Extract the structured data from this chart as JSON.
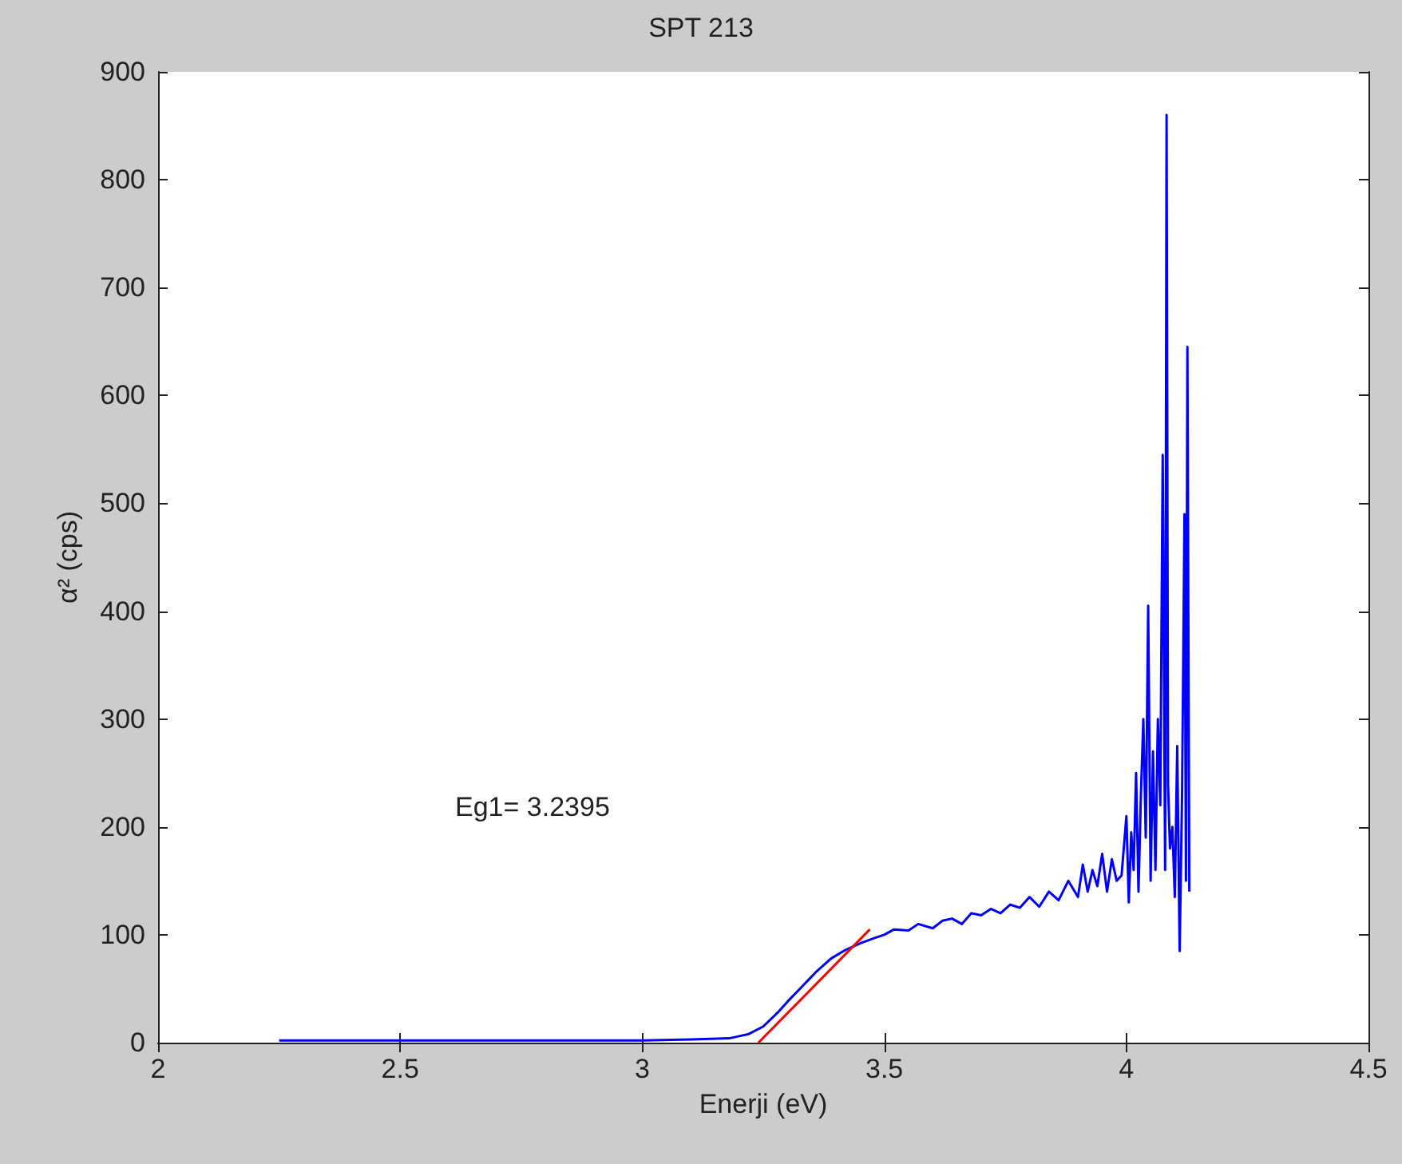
{
  "chart_data": {
    "type": "line",
    "title": "SPT 213",
    "xlabel": "Enerji (eV)",
    "ylabel": "α² (cps)",
    "annotations": [
      "Eg1= 3.2395"
    ],
    "xlim": [
      2,
      4.5
    ],
    "xticks": [
      2,
      2.5,
      3,
      3.5,
      4,
      4.5
    ],
    "ylim": [
      0,
      900
    ],
    "yticks": [
      0,
      100,
      200,
      300,
      400,
      500,
      600,
      700,
      800,
      900
    ],
    "grid": false,
    "marker": "none",
    "line_style": "solid",
    "series": [
      {
        "color": "#0000ff",
        "x": [
          2.25,
          2.5,
          2.75,
          3.0,
          3.1,
          3.18,
          3.2,
          3.22,
          3.25,
          3.28,
          3.3,
          3.33,
          3.36,
          3.39,
          3.42,
          3.45,
          3.48,
          3.5,
          3.52,
          3.55,
          3.57,
          3.6,
          3.62,
          3.64,
          3.66,
          3.68,
          3.7,
          3.72,
          3.74,
          3.76,
          3.78,
          3.8,
          3.82,
          3.84,
          3.86,
          3.88,
          3.9,
          3.91,
          3.92,
          3.93,
          3.94,
          3.95,
          3.96,
          3.97,
          3.98,
          3.99,
          4.0,
          4.005,
          4.01,
          4.015,
          4.02,
          4.025,
          4.03,
          4.035,
          4.04,
          4.045,
          4.05,
          4.055,
          4.06,
          4.065,
          4.07,
          4.075,
          4.08,
          4.083,
          4.086,
          4.09,
          4.095,
          4.1,
          4.105,
          4.11,
          4.115,
          4.12,
          4.123,
          4.126,
          4.13
        ],
        "values": [
          2,
          2,
          2,
          2,
          3,
          4,
          6,
          8,
          15,
          28,
          38,
          52,
          66,
          78,
          86,
          92,
          97,
          100,
          105,
          104,
          110,
          106,
          113,
          115,
          110,
          120,
          118,
          124,
          120,
          128,
          125,
          135,
          126,
          140,
          132,
          150,
          135,
          165,
          140,
          160,
          145,
          175,
          140,
          170,
          150,
          155,
          210,
          130,
          195,
          160,
          250,
          140,
          230,
          300,
          190,
          405,
          150,
          270,
          160,
          300,
          220,
          545,
          160,
          860,
          240,
          180,
          200,
          135,
          275,
          85,
          230,
          490,
          150,
          645,
          140
        ]
      },
      {
        "type": "line",
        "color": "#ff0000",
        "x": [
          3.24,
          3.47
        ],
        "values": [
          0,
          105
        ]
      }
    ]
  }
}
